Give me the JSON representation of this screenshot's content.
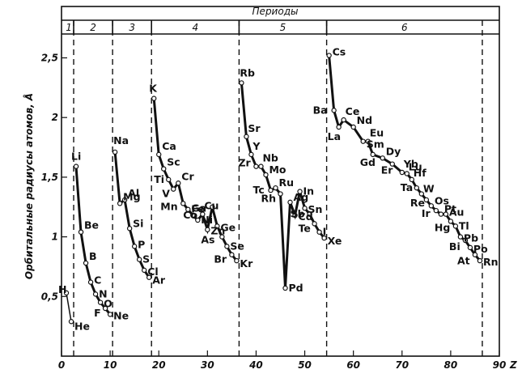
{
  "chart_data": {
    "type": "line",
    "title": "",
    "header_label": "Периоды",
    "ylabel": "Орбитальные радиусы атомов, Å",
    "xlabel": "Z",
    "xlim": [
      0,
      90
    ],
    "ylim": [
      0,
      2.7
    ],
    "x_ticks": [
      {
        "v": 0,
        "label": "0"
      },
      {
        "v": 10,
        "label": "10"
      },
      {
        "v": 20,
        "label": "20"
      },
      {
        "v": 30,
        "label": "30"
      },
      {
        "v": 40,
        "label": "40"
      },
      {
        "v": 50,
        "label": "50"
      },
      {
        "v": 60,
        "label": "60"
      },
      {
        "v": 70,
        "label": "70"
      },
      {
        "v": 80,
        "label": "80"
      },
      {
        "v": 90,
        "label": "90"
      }
    ],
    "y_ticks": [
      {
        "v": 0.5,
        "label": "0,5"
      },
      {
        "v": 1,
        "label": "1"
      },
      {
        "v": 1.5,
        "label": "1,5"
      },
      {
        "v": 2,
        "label": "2"
      },
      {
        "v": 2.5,
        "label": "2,5"
      }
    ],
    "periods": [
      {
        "label": "1",
        "z_start": 0.5,
        "z_end": 2.5
      },
      {
        "label": "2",
        "z_start": 2.5,
        "z_end": 10.5
      },
      {
        "label": "3",
        "z_start": 10.5,
        "z_end": 18.5
      },
      {
        "label": "4",
        "z_start": 18.5,
        "z_end": 36.5
      },
      {
        "label": "5",
        "z_start": 36.5,
        "z_end": 54.5
      },
      {
        "label": "6",
        "z_start": 54.5,
        "z_end": 86.5
      }
    ],
    "series": [
      {
        "points": [
          {
            "el": "H",
            "z": 1,
            "r": 0.53
          },
          {
            "el": "He",
            "z": 2,
            "r": 0.29
          }
        ]
      },
      {
        "points": [
          {
            "el": "Li",
            "z": 3,
            "r": 1.59
          },
          {
            "el": "Be",
            "z": 4,
            "r": 1.04
          },
          {
            "el": "B",
            "z": 5,
            "r": 0.78
          },
          {
            "el": "C",
            "z": 6,
            "r": 0.62
          },
          {
            "el": "N",
            "z": 7,
            "r": 0.52
          },
          {
            "el": "O",
            "z": 8,
            "r": 0.45
          },
          {
            "el": "F",
            "z": 9,
            "r": 0.4
          },
          {
            "el": "Ne",
            "z": 10,
            "r": 0.35
          }
        ]
      },
      {
        "points": [
          {
            "el": "Na",
            "z": 11,
            "r": 1.71
          },
          {
            "el": "Mg",
            "z": 12,
            "r": 1.28
          },
          {
            "el": "Al",
            "z": 13,
            "r": 1.31
          },
          {
            "el": "Si",
            "z": 14,
            "r": 1.07
          },
          {
            "el": "P",
            "z": 15,
            "r": 0.92
          },
          {
            "el": "S",
            "z": 16,
            "r": 0.81
          },
          {
            "el": "Cl",
            "z": 17,
            "r": 0.72
          },
          {
            "el": "Ar",
            "z": 18,
            "r": 0.66
          }
        ]
      },
      {
        "points": [
          {
            "el": "K",
            "z": 19,
            "r": 2.16
          },
          {
            "el": "Ca",
            "z": 20,
            "r": 1.69
          },
          {
            "el": "Sc",
            "z": 21,
            "r": 1.57
          },
          {
            "el": "Ti",
            "z": 22,
            "r": 1.48
          },
          {
            "el": "V",
            "z": 23,
            "r": 1.4
          },
          {
            "el": "Cr",
            "z": 24,
            "r": 1.45
          },
          {
            "el": "Mn",
            "z": 25,
            "r": 1.28
          },
          {
            "el": "Fe",
            "z": 26,
            "r": 1.23
          },
          {
            "el": "Co",
            "z": 27,
            "r": 1.18
          },
          {
            "el": "Ni",
            "z": 28,
            "r": 1.14
          },
          {
            "el": "Cu",
            "z": 29,
            "r": 1.19
          },
          {
            "el": "Zn",
            "z": 30,
            "r": 1.06
          },
          {
            "el": "Ga",
            "z": 31,
            "r": 1.25
          },
          {
            "el": "Ge",
            "z": 32,
            "r": 1.09
          },
          {
            "el": "As",
            "z": 33,
            "r": 1.0
          },
          {
            "el": "Se",
            "z": 34,
            "r": 0.92
          },
          {
            "el": "Br",
            "z": 35,
            "r": 0.85
          },
          {
            "el": "Kr",
            "z": 36,
            "r": 0.8
          }
        ]
      },
      {
        "points": [
          {
            "el": "Rb",
            "z": 37,
            "r": 2.29
          },
          {
            "el": "Sr",
            "z": 38,
            "r": 1.84
          },
          {
            "el": "Y",
            "z": 39,
            "r": 1.69
          },
          {
            "el": "Zr",
            "z": 40,
            "r": 1.59
          },
          {
            "el": "Nb",
            "z": 41,
            "r": 1.59
          },
          {
            "el": "Mo",
            "z": 42,
            "r": 1.52
          },
          {
            "el": "Tc",
            "z": 43,
            "r": 1.39
          },
          {
            "el": "Ru",
            "z": 44,
            "r": 1.41
          },
          {
            "el": "Rh",
            "z": 45,
            "r": 1.36
          },
          {
            "el": "Pd",
            "z": 46,
            "r": 0.57
          },
          {
            "el": "Ag",
            "z": 47,
            "r": 1.29
          },
          {
            "el": "Cd",
            "z": 48,
            "r": 1.18
          },
          {
            "el": "In",
            "z": 49,
            "r": 1.38
          },
          {
            "el": "Sn",
            "z": 50,
            "r": 1.24
          },
          {
            "el": "Sb",
            "z": 51,
            "r": 1.19
          },
          {
            "el": "Te",
            "z": 52,
            "r": 1.11
          },
          {
            "el": "I",
            "z": 53,
            "r": 1.04
          },
          {
            "el": "Xe",
            "z": 54,
            "r": 0.99
          }
        ]
      },
      {
        "points": [
          {
            "el": "Cs",
            "z": 55,
            "r": 2.52
          },
          {
            "el": "Ba",
            "z": 56,
            "r": 2.06
          },
          {
            "el": "La",
            "z": 57,
            "r": 1.92
          },
          {
            "el": "Ce",
            "z": 58,
            "r": 1.98
          },
          {
            "el": "Sm",
            "z": 62,
            "r": 1.8
          },
          {
            "el": "Nd",
            "z": 60,
            "r": 1.92
          },
          {
            "el": "Eu",
            "z": 63,
            "r": 1.8
          },
          {
            "el": "Gd",
            "z": 64,
            "r": 1.69
          },
          {
            "el": "Er",
            "z": 68,
            "r": 1.61
          },
          {
            "el": "Dy",
            "z": 66,
            "r": 1.66
          },
          {
            "el": "Yb",
            "z": 70,
            "r": 1.54
          },
          {
            "el": "Lu",
            "z": 71,
            "r": 1.53
          },
          {
            "el": "Hf",
            "z": 72,
            "r": 1.48
          },
          {
            "el": "Ta",
            "z": 73,
            "r": 1.41
          },
          {
            "el": "W",
            "z": 74,
            "r": 1.36
          },
          {
            "el": "Re",
            "z": 75,
            "r": 1.31
          },
          {
            "el": "Os",
            "z": 76,
            "r": 1.26
          },
          {
            "el": "Ir",
            "z": 77,
            "r": 1.22
          },
          {
            "el": "Pt",
            "z": 78,
            "r": 1.19
          },
          {
            "el": "Au",
            "z": 79,
            "r": 1.19
          },
          {
            "el": "Hg",
            "z": 80,
            "r": 1.13
          },
          {
            "el": "Tl",
            "z": 81,
            "r": 1.09
          },
          {
            "el": "Pb",
            "z": 82,
            "r": 1.0
          },
          {
            "el": "Bi",
            "z": 83,
            "r": 0.97
          },
          {
            "el": "Po",
            "z": 84,
            "r": 0.91
          },
          {
            "el": "At",
            "z": 85,
            "r": 0.85
          },
          {
            "el": "Rn",
            "z": 86,
            "r": 0.8
          }
        ]
      }
    ],
    "grid": false,
    "legend": "none"
  }
}
